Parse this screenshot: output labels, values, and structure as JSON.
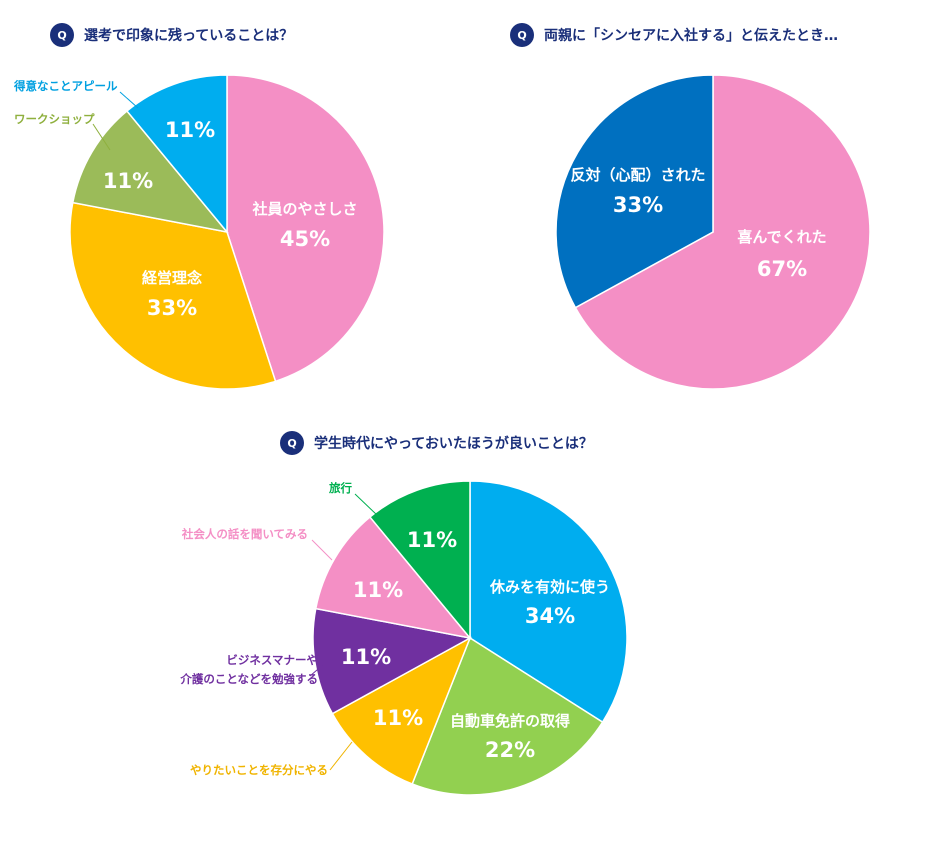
{
  "questions": [
    {
      "badge": "Q",
      "text": "選考で印象に残っていることは？"
    },
    {
      "badge": "Q",
      "text": "両親に「シンセアに入社する」と伝えたとき…"
    },
    {
      "badge": "Q",
      "text": "学生時代にやっておいたほうが良いことは？"
    }
  ],
  "chart_data": [
    {
      "type": "pie",
      "title": "選考で印象に残っていることは？",
      "slices": [
        {
          "label": "社員のやさしさ",
          "value": 45,
          "display": "45%",
          "color": "#f48fc5",
          "label_pos": "inside"
        },
        {
          "label": "経営理念",
          "value": 33,
          "display": "33%",
          "color": "#ffc000",
          "label_pos": "inside"
        },
        {
          "label": "ワークショップ",
          "value": 11,
          "display": "11%",
          "color": "#9bbb59",
          "label_pos": "outside",
          "label_color": "#8fb03e"
        },
        {
          "label": "得意なことアピール",
          "value": 11,
          "display": "11%",
          "color": "#00adef",
          "label_pos": "outside",
          "label_color": "#00a0e0"
        }
      ]
    },
    {
      "type": "pie",
      "title": "両親に「シンセアに入社する」と伝えたとき…",
      "slices": [
        {
          "label": "喜んでくれた",
          "value": 67,
          "display": "67%",
          "color": "#f48fc5",
          "label_pos": "inside"
        },
        {
          "label": "反対（心配）された",
          "value": 33,
          "display": "33%",
          "color": "#0070c0",
          "label_pos": "inside"
        }
      ]
    },
    {
      "type": "pie",
      "title": "学生時代にやっておいたほうが良いことは？",
      "slices": [
        {
          "label": "休みを有効に使う",
          "value": 34,
          "display": "34%",
          "color": "#00adef",
          "label_pos": "inside"
        },
        {
          "label": "自動車免許の取得",
          "value": 22,
          "display": "22%",
          "color": "#92d050",
          "label_pos": "inside"
        },
        {
          "label": "やりたいことを存分にやる",
          "value": 11,
          "display": "11%",
          "color": "#ffc000",
          "label_pos": "outside",
          "label_color": "#f0b400"
        },
        {
          "label": "ビジネスマナーや\n介護のことなどを勉強する",
          "value": 11,
          "display": "11%",
          "color": "#7030a0",
          "label_pos": "outside",
          "label_color": "#7030a0"
        },
        {
          "label": "社会人の話を聞いてみる",
          "value": 11,
          "display": "11%",
          "color": "#f48fc5",
          "label_pos": "outside",
          "label_color": "#f48fc5"
        },
        {
          "label": "旅行",
          "value": 11,
          "display": "11%",
          "color": "#00b050",
          "label_pos": "outside",
          "label_color": "#00b050"
        }
      ]
    }
  ]
}
